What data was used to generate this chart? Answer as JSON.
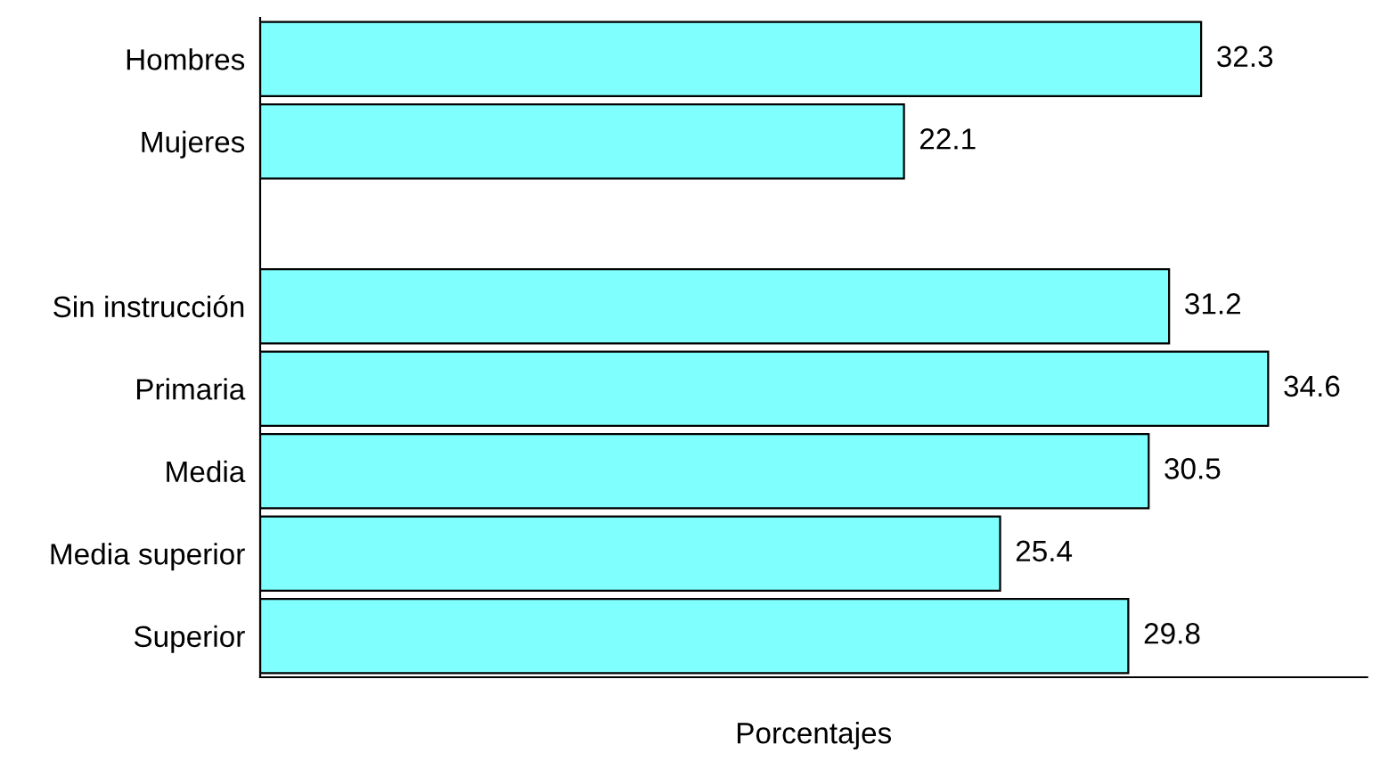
{
  "chart_data": {
    "type": "bar",
    "orientation": "horizontal",
    "xlabel": "Porcentajes",
    "categories": [
      "Hombres",
      "Mujeres",
      null,
      "Sin instrucción",
      "Primaria",
      "Media",
      "Media superior",
      "Superior"
    ],
    "values": [
      32.3,
      22.1,
      null,
      31.2,
      34.6,
      30.5,
      25.4,
      29.8
    ],
    "color": "#80ffff",
    "xlim": [
      0,
      38
    ],
    "data_labels": true,
    "grid": false,
    "legend": false
  }
}
